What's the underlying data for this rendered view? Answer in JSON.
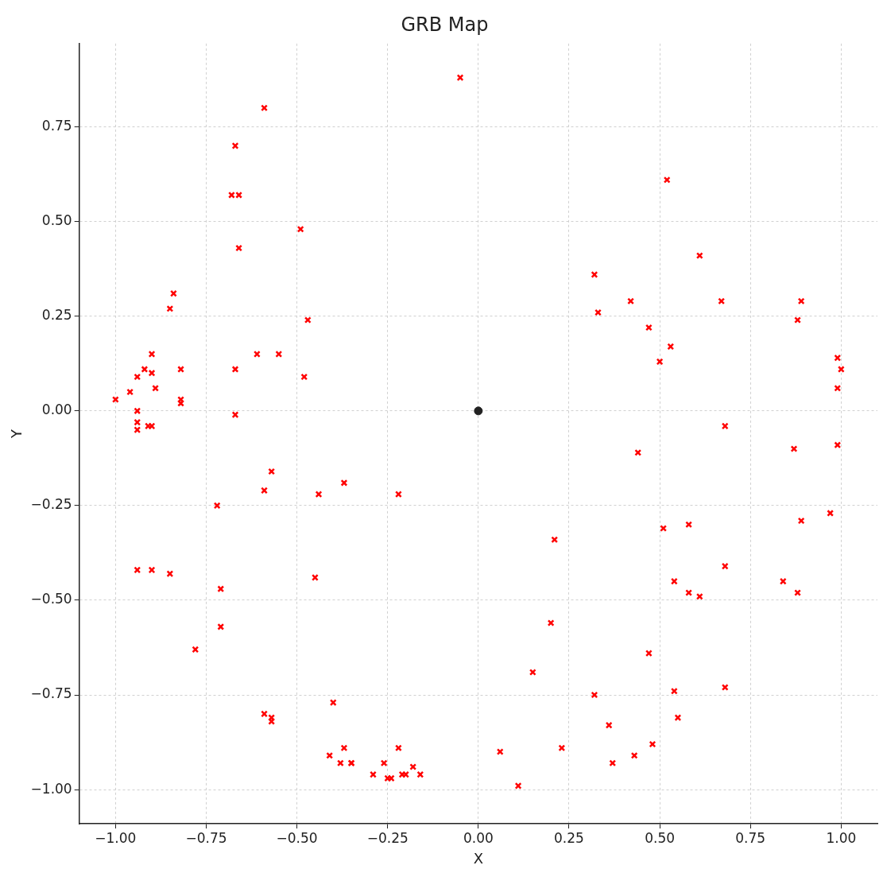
{
  "chart_data": {
    "type": "scatter",
    "title": "GRB Map",
    "xlabel": "X",
    "ylabel": "Y",
    "grid": true,
    "legend": false,
    "line_style": "dashed",
    "xlim": [
      -1.1,
      1.1
    ],
    "ylim": [
      -1.09,
      0.97
    ],
    "xticks": [
      {
        "value": -1,
        "label": "−1.00"
      },
      {
        "value": -0.75,
        "label": "−0.75"
      },
      {
        "value": -0.5,
        "label": "−0.50"
      },
      {
        "value": -0.25,
        "label": "−0.25"
      },
      {
        "value": 0,
        "label": "0.00"
      },
      {
        "value": 0.25,
        "label": "0.25"
      },
      {
        "value": 0.5,
        "label": "0.50"
      },
      {
        "value": 0.75,
        "label": "0.75"
      },
      {
        "value": 1,
        "label": "1.00"
      }
    ],
    "yticks": [
      {
        "value": -1,
        "label": "−1.00"
      },
      {
        "value": -0.75,
        "label": "−0.75"
      },
      {
        "value": -0.5,
        "label": "−0.50"
      },
      {
        "value": -0.25,
        "label": "−0.25"
      },
      {
        "value": 0,
        "label": "0.00"
      },
      {
        "value": 0.25,
        "label": "0.25"
      },
      {
        "value": 0.5,
        "label": "0.50"
      },
      {
        "value": 0.75,
        "label": "0.75"
      }
    ],
    "series": [
      {
        "color": "#ff0000",
        "marker": "cross",
        "x": [
          -0.05,
          -0.59,
          -0.67,
          -0.68,
          -0.66,
          -0.66,
          -0.49,
          -0.84,
          -0.85,
          -0.47,
          -0.9,
          -0.61,
          -0.55,
          -0.82,
          -0.92,
          -0.67,
          -0.94,
          -0.9,
          -0.48,
          -0.96,
          -0.89,
          -1.0,
          -0.82,
          -0.82,
          -0.94,
          -0.67,
          -0.94,
          -0.9,
          -0.91,
          -0.94,
          -0.57,
          -0.59,
          -0.37,
          -0.44,
          -0.22,
          -0.72,
          -0.94,
          -0.9,
          -0.85,
          -0.45,
          -0.71,
          -0.71,
          -0.78,
          -0.59,
          -0.57,
          -0.57,
          -0.4,
          -0.37,
          -0.41,
          -0.38,
          -0.35,
          -0.35,
          -0.26,
          -0.29,
          -0.25,
          -0.24,
          -0.21,
          -0.22,
          -0.2,
          -0.18,
          -0.16,
          0.06,
          0.11,
          0.23,
          0.15,
          0.2,
          0.21,
          0.32,
          0.36,
          0.37,
          0.43,
          0.48,
          0.47,
          0.54,
          0.55,
          0.68,
          0.54,
          0.58,
          0.61,
          0.68,
          0.51,
          0.58,
          0.84,
          0.88,
          0.89,
          0.97,
          0.99,
          0.87,
          0.68,
          0.44,
          0.99,
          1.0,
          0.99,
          0.88,
          0.89,
          0.67,
          0.5,
          0.53,
          0.47,
          0.42,
          0.33,
          0.32,
          0.61,
          0.52
        ],
        "values": [
          0.88,
          0.8,
          0.7,
          0.57,
          0.57,
          0.43,
          0.48,
          0.31,
          0.27,
          0.24,
          0.15,
          0.15,
          0.15,
          0.11,
          0.11,
          0.11,
          0.09,
          0.1,
          0.09,
          0.05,
          0.06,
          0.03,
          0.03,
          0.02,
          0.0,
          -0.01,
          -0.03,
          -0.04,
          -0.04,
          -0.05,
          -0.16,
          -0.21,
          -0.19,
          -0.22,
          -0.22,
          -0.25,
          -0.42,
          -0.42,
          -0.43,
          -0.44,
          -0.47,
          -0.57,
          -0.63,
          -0.8,
          -0.81,
          -0.82,
          -0.77,
          -0.89,
          -0.91,
          -0.93,
          -0.93,
          -0.93,
          -0.93,
          -0.96,
          -0.97,
          -0.97,
          -0.96,
          -0.89,
          -0.96,
          -0.94,
          -0.96,
          -0.9,
          -0.99,
          -0.89,
          -0.69,
          -0.56,
          -0.34,
          -0.75,
          -0.83,
          -0.93,
          -0.91,
          -0.88,
          -0.64,
          -0.74,
          -0.81,
          -0.73,
          -0.45,
          -0.48,
          -0.49,
          -0.41,
          -0.31,
          -0.3,
          -0.45,
          -0.48,
          -0.29,
          -0.27,
          -0.09,
          -0.1,
          -0.04,
          -0.11,
          0.06,
          0.11,
          0.14,
          0.24,
          0.29,
          0.29,
          0.13,
          0.17,
          0.22,
          0.29,
          0.26,
          0.36,
          0.41,
          0.61
        ]
      },
      {
        "color": "#222222",
        "marker": "circle",
        "x": [
          0
        ],
        "values": [
          0
        ]
      }
    ]
  }
}
